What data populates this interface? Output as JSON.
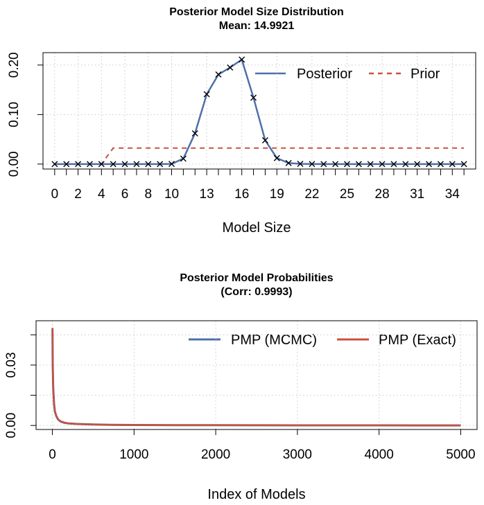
{
  "chart_data": [
    {
      "type": "line",
      "title": "Posterior Model Size Distribution",
      "subtitle": "Mean: 14.9921",
      "xlabel": "Model Size",
      "ylabel": "",
      "xlim": [
        -1,
        36
      ],
      "ylim": [
        -0.01,
        0.225
      ],
      "xtick_labels": [
        "0",
        "2",
        "4",
        "6",
        "8",
        "10",
        "13",
        "16",
        "19",
        "22",
        "25",
        "28",
        "31",
        "34"
      ],
      "xtick_values": [
        0,
        2,
        4,
        6,
        8,
        10,
        13,
        16,
        19,
        22,
        25,
        28,
        31,
        34
      ],
      "xtick_marks": [
        0,
        1,
        2,
        3,
        4,
        5,
        6,
        7,
        8,
        9,
        10,
        11,
        12,
        13,
        14,
        15,
        16,
        17,
        18,
        19,
        20,
        21,
        22,
        23,
        24,
        25,
        26,
        27,
        28,
        29,
        30,
        31,
        32,
        33,
        34,
        35
      ],
      "ytick_labels": [
        "0.00",
        "0.10",
        "0.20"
      ],
      "ytick_values": [
        0,
        0.1,
        0.2
      ],
      "grid": true,
      "legend_position": "top-right",
      "series": [
        {
          "name": "Posterior",
          "color": "#4f6fa8",
          "style": "solid",
          "markers": "x",
          "x": [
            0,
            1,
            2,
            3,
            4,
            5,
            6,
            7,
            8,
            9,
            10,
            11,
            12,
            13,
            14,
            15,
            16,
            17,
            18,
            19,
            20,
            21,
            22,
            23,
            24,
            25,
            26,
            27,
            28,
            29,
            30,
            31,
            32,
            33,
            34,
            35
          ],
          "y": [
            0,
            0,
            0,
            0,
            0,
            0,
            0,
            0,
            0,
            0,
            0.0003,
            0.011,
            0.062,
            0.141,
            0.181,
            0.195,
            0.211,
            0.134,
            0.048,
            0.012,
            0.002,
            0.0005,
            0.0002,
            0,
            0,
            0,
            0,
            0,
            0,
            0,
            0,
            0,
            0,
            0,
            0,
            0
          ]
        },
        {
          "name": "Prior",
          "color": "#c8503f",
          "style": "dashed",
          "x": [
            0,
            1,
            2,
            3,
            4,
            5,
            6,
            7,
            8,
            9,
            10,
            11,
            12,
            13,
            14,
            15,
            16,
            17,
            18,
            19,
            20,
            21,
            22,
            23,
            24,
            25,
            26,
            27,
            28,
            29,
            30,
            31,
            32,
            33,
            34,
            35
          ],
          "y": [
            0,
            0,
            0,
            0,
            0,
            0.0323,
            0.0323,
            0.0323,
            0.0323,
            0.0323,
            0.0323,
            0.0323,
            0.0323,
            0.0323,
            0.0323,
            0.0323,
            0.0323,
            0.0323,
            0.0323,
            0.0323,
            0.0323,
            0.0323,
            0.0323,
            0.0323,
            0.0323,
            0.0323,
            0.0323,
            0.0323,
            0.0323,
            0.0323,
            0.0323,
            0.0323,
            0.0323,
            0.0323,
            0.0323,
            0.0323
          ]
        }
      ]
    },
    {
      "type": "line",
      "title": "Posterior Model Probabilities",
      "subtitle": "(Corr: 0.9993)",
      "xlabel": "Index of Models",
      "ylabel": "",
      "xlim": [
        -200,
        5200
      ],
      "ylim": [
        -0.002,
        0.052
      ],
      "xtick_labels": [
        "0",
        "1000",
        "2000",
        "3000",
        "4000",
        "5000"
      ],
      "xtick_values": [
        0,
        1000,
        2000,
        3000,
        4000,
        5000
      ],
      "ytick_labels": [
        "0.00",
        "0.03"
      ],
      "ytick_values": [
        0,
        0.03
      ],
      "ytick_marks": [
        0,
        0.015,
        0.03,
        0.045
      ],
      "grid": true,
      "legend_position": "top-right",
      "series": [
        {
          "name": "PMP (MCMC)",
          "color": "#4f6fa8",
          "style": "solid",
          "x": [
            1,
            3,
            5,
            10,
            20,
            30,
            50,
            70,
            100,
            150,
            200,
            300,
            400,
            500,
            700,
            1000,
            1500,
            2000,
            2500,
            3000,
            3500,
            4000,
            4500,
            5000
          ],
          "y": [
            0.048,
            0.036,
            0.029,
            0.019,
            0.011,
            0.007,
            0.0045,
            0.003,
            0.002,
            0.0013,
            0.001,
            0.00075,
            0.0006,
            0.0005,
            0.00035,
            0.00025,
            0.00016,
            0.00012,
            0.0001,
            8e-05,
            6e-05,
            5e-05,
            4e-05,
            3e-05
          ]
        },
        {
          "name": "PMP (Exact)",
          "color": "#c8503f",
          "style": "solid",
          "x": [
            1,
            3,
            5,
            10,
            20,
            30,
            50,
            70,
            100,
            150,
            200,
            300,
            400,
            500,
            700,
            1000,
            1500,
            2000,
            2500,
            3000,
            3500,
            4000,
            4500,
            5000
          ],
          "y": [
            0.0485,
            0.0362,
            0.0291,
            0.0191,
            0.0111,
            0.0071,
            0.0046,
            0.0031,
            0.0021,
            0.0014,
            0.001,
            0.00076,
            0.0006,
            0.0005,
            0.00035,
            0.00025,
            0.00016,
            0.00012,
            0.0001,
            8e-05,
            6e-05,
            5e-05,
            4e-05,
            3e-05
          ]
        }
      ]
    }
  ]
}
